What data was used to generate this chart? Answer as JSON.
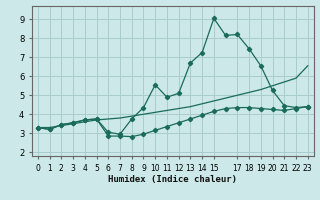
{
  "xlabel": "Humidex (Indice chaleur)",
  "bg_color": "#cce8e8",
  "grid_color": "#aacccc",
  "line_color": "#1a6b5a",
  "xlim": [
    -0.5,
    23.5
  ],
  "ylim": [
    1.8,
    9.7
  ],
  "xticks": [
    0,
    1,
    2,
    3,
    4,
    5,
    6,
    7,
    8,
    9,
    10,
    11,
    12,
    13,
    14,
    15,
    17,
    18,
    19,
    20,
    21,
    22,
    23
  ],
  "yticks": [
    2,
    3,
    4,
    5,
    6,
    7,
    8,
    9
  ],
  "line1_x": [
    0,
    1,
    2,
    3,
    4,
    5,
    6,
    7,
    8,
    9,
    10,
    11,
    12,
    13,
    14,
    15,
    16,
    17,
    18,
    19,
    20,
    21,
    22,
    23
  ],
  "line1_y": [
    3.3,
    3.2,
    3.45,
    3.55,
    3.7,
    3.75,
    3.05,
    2.95,
    3.75,
    4.35,
    5.55,
    4.9,
    5.1,
    6.7,
    7.25,
    9.05,
    8.15,
    8.2,
    7.45,
    6.55,
    5.25,
    4.45,
    4.35,
    4.4
  ],
  "line2_x": [
    0,
    1,
    2,
    3,
    4,
    5,
    6,
    7,
    8,
    9,
    10,
    11,
    12,
    13,
    14,
    15,
    16,
    17,
    18,
    19,
    20,
    21,
    22,
    23
  ],
  "line2_y": [
    3.3,
    3.2,
    3.45,
    3.55,
    3.7,
    3.75,
    2.85,
    2.85,
    2.82,
    2.95,
    3.15,
    3.35,
    3.55,
    3.75,
    3.95,
    4.15,
    4.3,
    4.35,
    4.35,
    4.3,
    4.25,
    4.2,
    4.3,
    4.4
  ],
  "line3_x": [
    0,
    1,
    2,
    3,
    4,
    5,
    6,
    7,
    8,
    9,
    10,
    11,
    12,
    13,
    14,
    15,
    16,
    17,
    18,
    19,
    20,
    21,
    22,
    23
  ],
  "line3_y": [
    3.3,
    3.3,
    3.4,
    3.5,
    3.6,
    3.7,
    3.75,
    3.8,
    3.9,
    4.0,
    4.1,
    4.2,
    4.3,
    4.4,
    4.55,
    4.7,
    4.85,
    5.0,
    5.15,
    5.3,
    5.5,
    5.7,
    5.9,
    6.55
  ]
}
